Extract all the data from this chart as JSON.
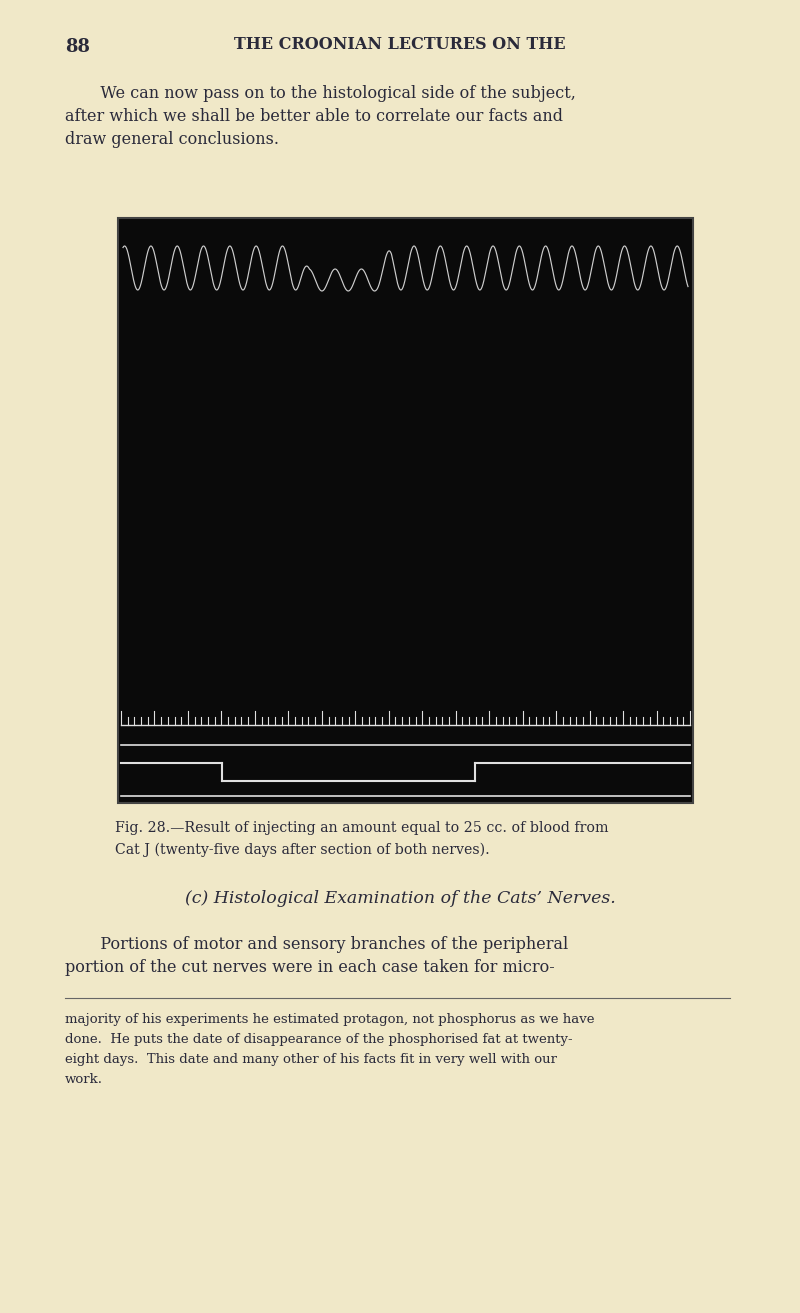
{
  "background_color": "#f0e8c8",
  "page_number": "88",
  "header_text": "THE CROONIAN LECTURES ON THE",
  "para1_line1": "   We can now pass on to the histological side of the subject,",
  "para1_line2": "after which we shall be better able to correlate our facts and",
  "para1_line3": "draw general conclusions.",
  "fig_caption_line1": "Fig. 28.—Result of injecting an amount equal to 25 cc. of blood from",
  "fig_caption_line2": "Cat J (twenty-five days after section of both nerves).",
  "section_header": "(c) Histological Examination of the Cats’ Nerves.",
  "para2_line1": "   Portions of motor and sensory branches of the peripheral",
  "para2_line2": "portion of the cut nerves were in each case taken for micro-",
  "footnote_line1": "majority of his experiments he estimated protagon, not phosphorus as we have",
  "footnote_line2": "done.  He puts the date of disappearance of the phosphorised fat at twenty-",
  "footnote_line3": "eight days.  This date and many other of his facts fit in very well with our",
  "footnote_line4": "work.",
  "chart_bg": "#0a0a0a",
  "wave_color": "#d8d8d8",
  "tick_color": "#e0e0e0",
  "signal_color": "#e0e0e0",
  "text_color": "#2a2a3a"
}
